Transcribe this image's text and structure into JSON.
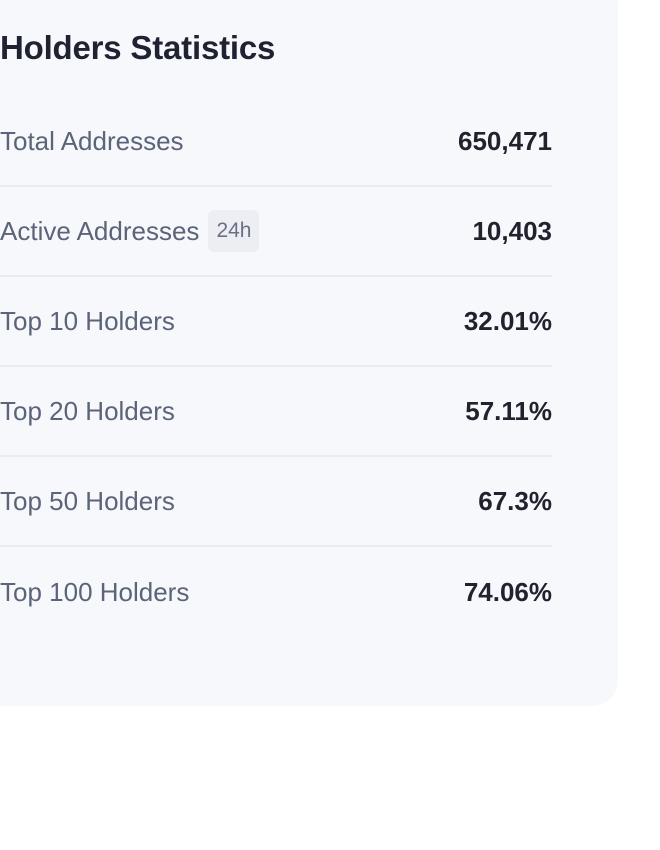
{
  "card": {
    "title": "Holders Statistics"
  },
  "stats": [
    {
      "label": "Total Addresses",
      "value": "650,471",
      "badge": ""
    },
    {
      "label": "Active Addresses",
      "value": "10,403",
      "badge": "24h"
    },
    {
      "label": "Top 10 Holders",
      "value": "32.01%",
      "badge": ""
    },
    {
      "label": "Top 20 Holders",
      "value": "57.11%",
      "badge": ""
    },
    {
      "label": "Top 50 Holders",
      "value": "67.3%",
      "badge": ""
    },
    {
      "label": "Top 100 Holders",
      "value": "74.06%",
      "badge": ""
    }
  ],
  "colors": {
    "card_background": "#f7f8fc",
    "title_text": "#1f2230",
    "label_text": "#5c6479",
    "value_text": "#20232d",
    "divider": "#e9ebf2",
    "badge_background": "#eceef3"
  }
}
